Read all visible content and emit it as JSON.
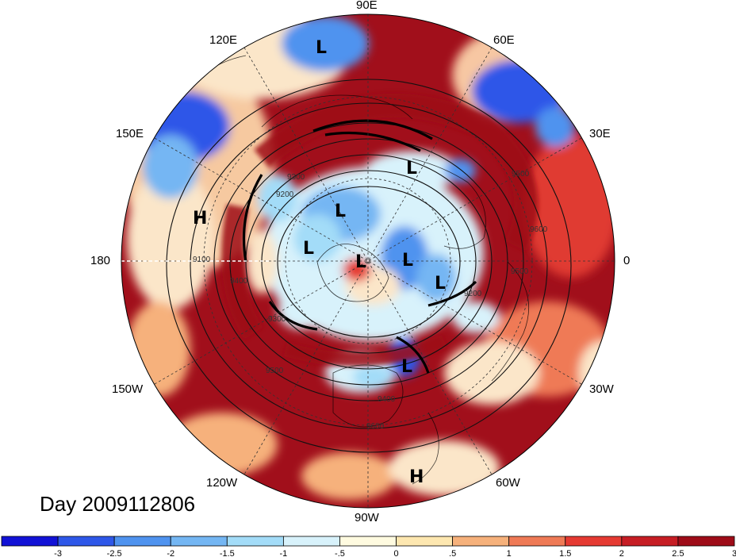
{
  "title": "Day 2009112806",
  "lon_labels": [
    "90E",
    "120E",
    "60E",
    "150E",
    "30E",
    "180",
    "0",
    "150W",
    "30W",
    "120W",
    "60W",
    "90W"
  ],
  "pressure_systems": [
    {
      "type": "L",
      "label": "L"
    },
    {
      "type": "L",
      "label": "L"
    },
    {
      "type": "L",
      "label": "L"
    },
    {
      "type": "L",
      "label": "L"
    },
    {
      "type": "L",
      "label": "L"
    },
    {
      "type": "L",
      "label": "L"
    },
    {
      "type": "L",
      "label": "L"
    },
    {
      "type": "L",
      "label": "L"
    },
    {
      "type": "H",
      "label": "H"
    },
    {
      "type": "H",
      "label": "H"
    }
  ],
  "contour_labels": [
    "9500",
    "9600",
    "9400",
    "9300",
    "9200",
    "9100",
    "9500",
    "9400",
    "9600",
    "9300",
    "9200",
    "9500"
  ],
  "colorbar": {
    "colors": [
      "#1212d6",
      "#2e57e8",
      "#4f93ef",
      "#74b6f3",
      "#a3dcf8",
      "#d8f2fb",
      "#fffbe0",
      "#fde7b0",
      "#f6b17b",
      "#ef7a56",
      "#e53a32",
      "#c61d24",
      "#9e0c18"
    ],
    "tick_labels": [
      "-3",
      "-2.5",
      "-2",
      "-1.5",
      "-1",
      "-.5",
      "0",
      ".5",
      "1",
      "1.5",
      "2",
      "2.5",
      "3"
    ]
  }
}
